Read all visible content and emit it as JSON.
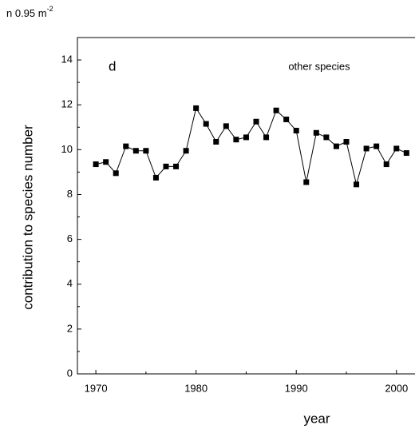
{
  "chart_data": {
    "type": "line",
    "header": "n 0.95 m",
    "header_sup": "-2",
    "panel_label": "d",
    "annotation": "other species",
    "x_label": "year",
    "y_label": "contribution to species number",
    "x": [
      1970,
      1971,
      1972,
      1973,
      1974,
      1975,
      1976,
      1977,
      1978,
      1979,
      1980,
      1981,
      1982,
      1983,
      1984,
      1985,
      1986,
      1987,
      1988,
      1989,
      1990,
      1991,
      1992,
      1993,
      1994,
      1995,
      1996,
      1997,
      1998,
      1999,
      2000,
      2001
    ],
    "series": [
      {
        "color": "#000000",
        "values": [
          9.35,
          9.45,
          8.95,
          10.15,
          9.95,
          9.95,
          8.75,
          9.25,
          9.25,
          9.95,
          11.85,
          11.15,
          10.35,
          11.05,
          10.45,
          10.55,
          11.25,
          10.55,
          11.75,
          11.35,
          10.85,
          8.55,
          10.75,
          10.55,
          10.15,
          10.35,
          8.45,
          10.05,
          10.15,
          9.35,
          10.05,
          9.85
        ]
      }
    ],
    "xlim": [
      1968.16,
      2004
    ],
    "xticks": [
      1970,
      1980,
      1990,
      2000
    ],
    "ylim": [
      0,
      15
    ],
    "yticks": [
      0,
      2,
      4,
      6,
      8,
      10,
      12,
      14
    ]
  }
}
